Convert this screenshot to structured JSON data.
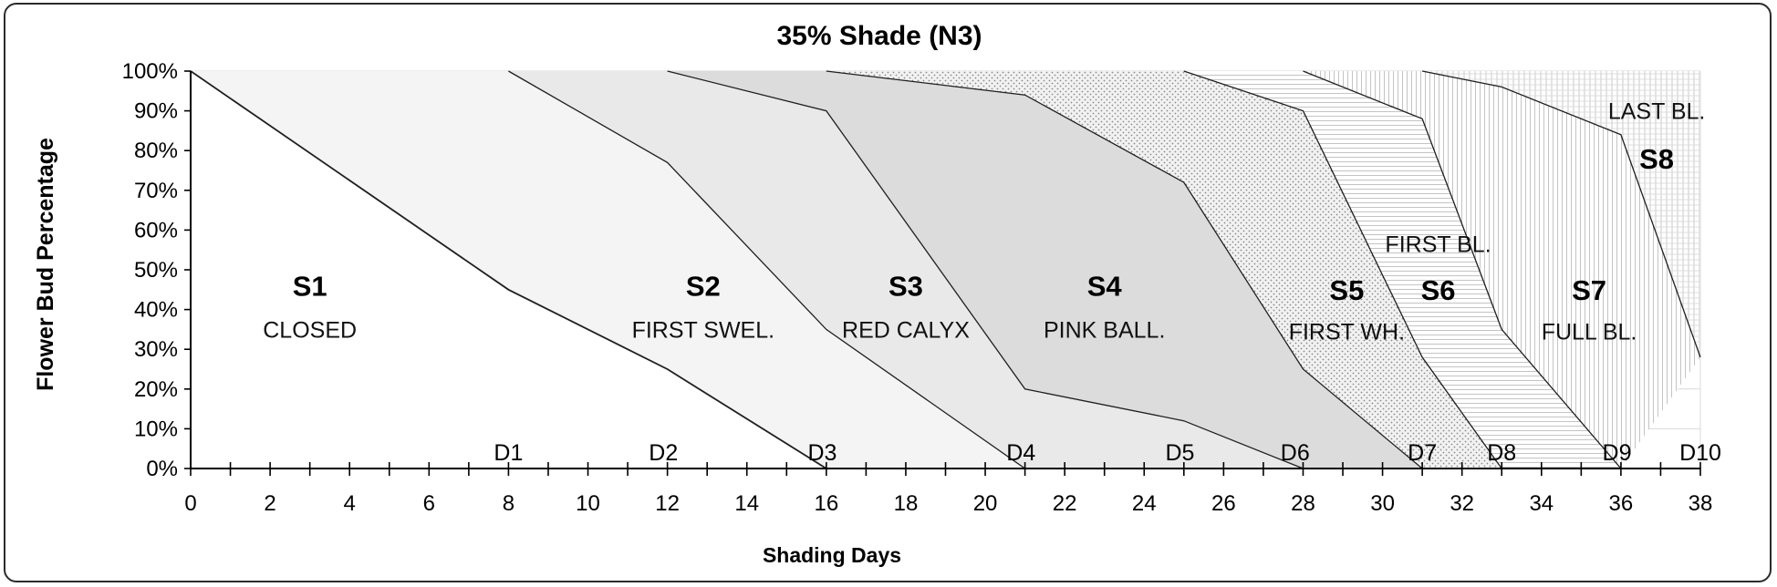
{
  "chart_data": {
    "type": "area",
    "title": "35% Shade (N3)",
    "xlabel": "Shading Days",
    "ylabel": "Flower Bud Percentage",
    "xlim": [
      0,
      38
    ],
    "ylim": [
      0,
      100
    ],
    "x_ticks": [
      0,
      2,
      4,
      6,
      8,
      10,
      12,
      14,
      16,
      18,
      20,
      22,
      24,
      26,
      28,
      30,
      32,
      34,
      36,
      38
    ],
    "y_ticks": [
      "0%",
      "10%",
      "20%",
      "30%",
      "40%",
      "50%",
      "60%",
      "70%",
      "80%",
      "90%",
      "100%"
    ],
    "boundary_lines": [
      {
        "x": [
          0,
          8,
          12,
          16
        ],
        "y": [
          100,
          45,
          25,
          0
        ]
      },
      {
        "x": [
          8,
          12,
          16,
          21
        ],
        "y": [
          100,
          77,
          35,
          0
        ]
      },
      {
        "x": [
          12,
          16,
          21,
          25,
          28
        ],
        "y": [
          100,
          90,
          20,
          12,
          0
        ]
      },
      {
        "x": [
          16,
          21,
          25,
          28,
          31
        ],
        "y": [
          100,
          94,
          72,
          25,
          0
        ]
      },
      {
        "x": [
          25,
          28,
          31,
          33
        ],
        "y": [
          100,
          90,
          28,
          0
        ]
      },
      {
        "x": [
          28,
          31,
          33,
          36
        ],
        "y": [
          100,
          88,
          35,
          0
        ]
      },
      {
        "x": [
          31,
          33,
          36,
          38
        ],
        "y": [
          100,
          96,
          84,
          28
        ]
      }
    ],
    "stages": [
      {
        "code": "S1",
        "name": "CLOSED",
        "x": 3,
        "y_code": 46,
        "y_name": 35
      },
      {
        "code": "S2",
        "name": "FIRST SWEL.",
        "x": 12.9,
        "y_code": 46,
        "y_name": 35
      },
      {
        "code": "S3",
        "name": "RED CALYX",
        "x": 18,
        "y_code": 46,
        "y_name": 35
      },
      {
        "code": "S4",
        "name": "PINK BALL.",
        "x": 23,
        "y_code": 46,
        "y_name": 35
      },
      {
        "code": "S5",
        "name": "FIRST WH.",
        "x": 29.1,
        "y_code": 45,
        "y_name": 34.5
      },
      {
        "code": "S6",
        "name": "FIRST BL.",
        "x": 31.4,
        "y_code": 45,
        "y_name": 56.5
      },
      {
        "code": "S7",
        "name": "FULL BL.",
        "x": 35.2,
        "y_code": 45,
        "y_name": 34.5
      },
      {
        "code": "S8",
        "name": "LAST BL.",
        "x": 36.9,
        "y_code": 78,
        "y_name": 90
      }
    ],
    "day_markers": [
      {
        "label": "D1",
        "x": 8
      },
      {
        "label": "D2",
        "x": 11.9
      },
      {
        "label": "D3",
        "x": 15.9
      },
      {
        "label": "D4",
        "x": 20.9
      },
      {
        "label": "D5",
        "x": 24.9
      },
      {
        "label": "D6",
        "x": 27.8
      },
      {
        "label": "D7",
        "x": 31
      },
      {
        "label": "D8",
        "x": 33
      },
      {
        "label": "D9",
        "x": 35.9
      },
      {
        "label": "D10",
        "x": 38
      }
    ],
    "grid": true,
    "legend": "none"
  }
}
